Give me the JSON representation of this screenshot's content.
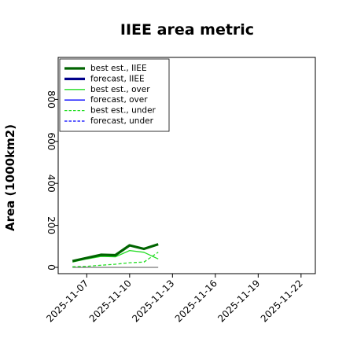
{
  "chart_data": {
    "type": "line",
    "title": "IIEE area metric",
    "xlabel": "",
    "ylabel": "Area (1000km2)",
    "x_tick_labels": [
      "2025-11-07",
      "2025-11-10",
      "2025-11-13",
      "2025-11-16",
      "2025-11-19",
      "2025-11-22"
    ],
    "x_tick_colors": [
      "#000000",
      "#000000",
      "#2e8b57",
      "#000000",
      "#000000",
      "#000000"
    ],
    "y_ticks": [
      0,
      200,
      400,
      600,
      800
    ],
    "xlim": [
      "2025-11-05",
      "2025-11-23"
    ],
    "ylim": [
      -30,
      1000
    ],
    "grid": false,
    "legend_position": "top-left",
    "reference_line": {
      "y": 0,
      "from": "2025-11-06",
      "to": "2025-11-12",
      "color": "#555555"
    },
    "series": [
      {
        "name": "best est., IIEE",
        "color": "#006400",
        "style": "solid",
        "width": 3.2,
        "x": [
          "2025-11-06",
          "2025-11-07",
          "2025-11-08",
          "2025-11-09",
          "2025-11-10",
          "2025-11-11",
          "2025-11-12"
        ],
        "y": [
          30,
          45,
          60,
          58,
          105,
          88,
          110
        ]
      },
      {
        "name": "forecast, IIEE",
        "color": "#00008b",
        "style": "solid",
        "width": 3.2,
        "x": [],
        "y": []
      },
      {
        "name": "best est., over",
        "color": "#22dd22",
        "style": "solid",
        "width": 1.3,
        "x": [
          "2025-11-06",
          "2025-11-07",
          "2025-11-08",
          "2025-11-09",
          "2025-11-10",
          "2025-11-11",
          "2025-11-12"
        ],
        "y": [
          25,
          40,
          52,
          50,
          80,
          72,
          40
        ]
      },
      {
        "name": "forecast, over",
        "color": "#0000ff",
        "style": "solid",
        "width": 1.3,
        "x": [],
        "y": []
      },
      {
        "name": "best est., under",
        "color": "#22dd22",
        "style": "dashed",
        "width": 1.3,
        "x": [
          "2025-11-06",
          "2025-11-07",
          "2025-11-08",
          "2025-11-09",
          "2025-11-10",
          "2025-11-11",
          "2025-11-12"
        ],
        "y": [
          3,
          5,
          10,
          15,
          22,
          25,
          72
        ]
      },
      {
        "name": "forecast, under",
        "color": "#0000ff",
        "style": "dashed",
        "width": 1.3,
        "x": [],
        "y": []
      }
    ]
  }
}
